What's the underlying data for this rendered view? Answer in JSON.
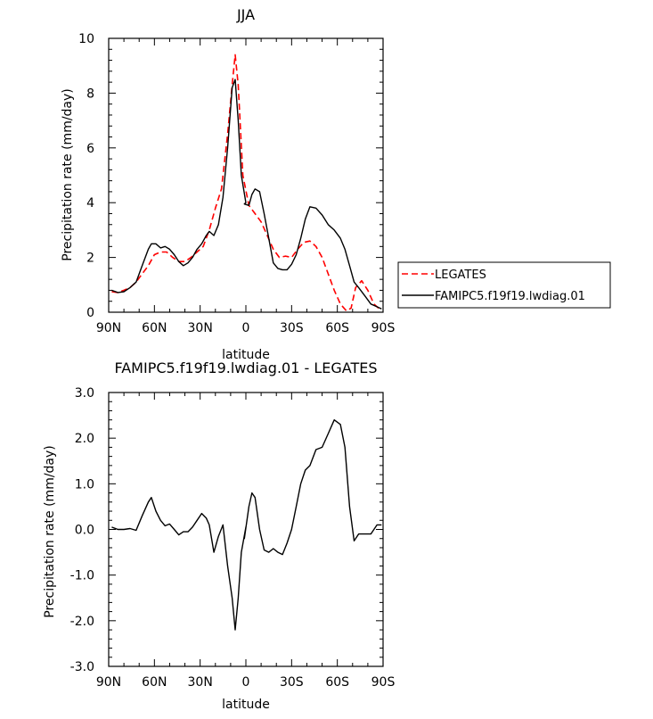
{
  "chart_data": [
    {
      "type": "line",
      "title": "JJA",
      "xlabel": "latitude",
      "ylabel": "Precipitation rate (mm/day)",
      "xlim": [
        90,
        -90
      ],
      "ylim": [
        0,
        10
      ],
      "x_ticks": [
        90,
        60,
        30,
        0,
        -30,
        -60,
        -90
      ],
      "x_tick_labels": [
        "90N",
        "60N",
        "30N",
        "0",
        "30S",
        "60S",
        "90S"
      ],
      "y_ticks": [
        0,
        2,
        4,
        6,
        8,
        10
      ],
      "y_tick_labels": [
        "0",
        "2",
        "4",
        "6",
        "8",
        "10"
      ],
      "legend_position": "right",
      "series": [
        {
          "name": "LEGATES",
          "color": "#ff0000",
          "dash": "dashed",
          "x": [
            88,
            84,
            80,
            76,
            72,
            68,
            64,
            60,
            56,
            52,
            48,
            44,
            40,
            36,
            32,
            28,
            24,
            20,
            16,
            12,
            9,
            7,
            5,
            2,
            -2,
            -6,
            -10,
            -14,
            -18,
            -22,
            -26,
            -30,
            -34,
            -38,
            -42,
            -46,
            -50,
            -54,
            -58,
            -62,
            -66,
            -69,
            -72,
            -76,
            -80,
            -84,
            -88
          ],
          "y": [
            0.75,
            0.72,
            0.8,
            0.9,
            1.1,
            1.4,
            1.7,
            2.1,
            2.2,
            2.2,
            2.0,
            1.85,
            1.85,
            2.0,
            2.2,
            2.4,
            3.0,
            3.8,
            4.5,
            6.5,
            8.3,
            9.4,
            8.3,
            5.0,
            3.9,
            3.6,
            3.3,
            2.8,
            2.3,
            2.0,
            2.05,
            2.0,
            2.3,
            2.55,
            2.6,
            2.4,
            2.0,
            1.4,
            0.8,
            0.3,
            0.05,
            0.15,
            0.9,
            1.15,
            0.8,
            0.3,
            0.1
          ]
        },
        {
          "name": "FAMIPC5.f19f19.lwdiag.01",
          "color": "#000000",
          "dash": "solid",
          "x": [
            88,
            84,
            80,
            76,
            72,
            68,
            64,
            62,
            59,
            56,
            53,
            50,
            47,
            44,
            41,
            38,
            35,
            32,
            29,
            26,
            24,
            21,
            18,
            15,
            12,
            9,
            7,
            5,
            3,
            0,
            1,
            -2,
            -4,
            -6,
            -9,
            -12,
            -15,
            -18,
            -21,
            -24,
            -27,
            -30,
            -33,
            -36,
            -39,
            -42,
            -46,
            -50,
            -54,
            -58,
            -62,
            -65,
            -68,
            -71,
            -74,
            -78,
            -82,
            -86,
            -89
          ],
          "y": [
            0.8,
            0.72,
            0.75,
            0.9,
            1.1,
            1.7,
            2.3,
            2.5,
            2.5,
            2.35,
            2.4,
            2.3,
            2.1,
            1.85,
            1.7,
            1.8,
            2.0,
            2.3,
            2.5,
            2.8,
            2.95,
            2.8,
            3.2,
            4.2,
            6.0,
            8.2,
            8.5,
            7.0,
            5.0,
            4.0,
            3.95,
            3.9,
            4.3,
            4.5,
            4.4,
            3.6,
            2.7,
            1.8,
            1.6,
            1.55,
            1.55,
            1.75,
            2.1,
            2.7,
            3.4,
            3.85,
            3.8,
            3.55,
            3.2,
            3.0,
            2.7,
            2.3,
            1.7,
            1.1,
            0.9,
            0.6,
            0.3,
            0.2,
            0.12
          ]
        }
      ]
    },
    {
      "type": "line",
      "title": "FAMIPC5.f19f19.lwdiag.01 - LEGATES",
      "xlabel": "latitude",
      "ylabel": "Precipitation rate (mm/day)",
      "xlim": [
        90,
        -90
      ],
      "ylim": [
        -3.0,
        3.0
      ],
      "x_ticks": [
        90,
        60,
        30,
        0,
        -30,
        -60,
        -90
      ],
      "x_tick_labels": [
        "90N",
        "60N",
        "30N",
        "0",
        "30S",
        "60S",
        "90S"
      ],
      "y_ticks": [
        -3,
        -2,
        -1,
        0,
        1,
        2,
        3
      ],
      "y_tick_labels": [
        "-3.0",
        "-2.0",
        "-1.0",
        "0.0",
        "1.0",
        "2.0",
        "3.0"
      ],
      "series": [
        {
          "color": "#000000",
          "x": [
            88,
            84,
            80,
            76,
            72,
            68,
            64,
            62,
            59,
            56,
            53,
            50,
            47,
            44,
            41,
            38,
            35,
            32,
            29,
            26,
            24,
            21,
            18,
            15,
            12,
            9,
            7,
            5,
            3,
            0,
            1,
            -2,
            -4,
            -6,
            -9,
            -12,
            -15,
            -18,
            -21,
            -24,
            -27,
            -30,
            -33,
            -36,
            -39,
            -42,
            -46,
            -50,
            -54,
            -58,
            -62,
            -65,
            -68,
            -71,
            -74,
            -78,
            -82,
            -86,
            -89
          ],
          "y": [
            0.05,
            0.0,
            0.0,
            0.02,
            -0.02,
            0.3,
            0.6,
            0.7,
            0.4,
            0.2,
            0.08,
            0.12,
            0.0,
            -0.12,
            -0.05,
            -0.05,
            0.05,
            0.2,
            0.35,
            0.25,
            0.1,
            -0.5,
            -0.15,
            0.1,
            -0.8,
            -1.5,
            -2.2,
            -1.5,
            -0.5,
            0.05,
            -0.2,
            0.5,
            0.8,
            0.7,
            0.0,
            -0.45,
            -0.5,
            -0.42,
            -0.5,
            -0.55,
            -0.3,
            0.0,
            0.5,
            1.0,
            1.3,
            1.4,
            1.75,
            1.8,
            2.1,
            2.4,
            2.3,
            1.8,
            0.5,
            -0.25,
            -0.1,
            -0.1,
            -0.1,
            0.1,
            0.1
          ]
        }
      ]
    }
  ]
}
